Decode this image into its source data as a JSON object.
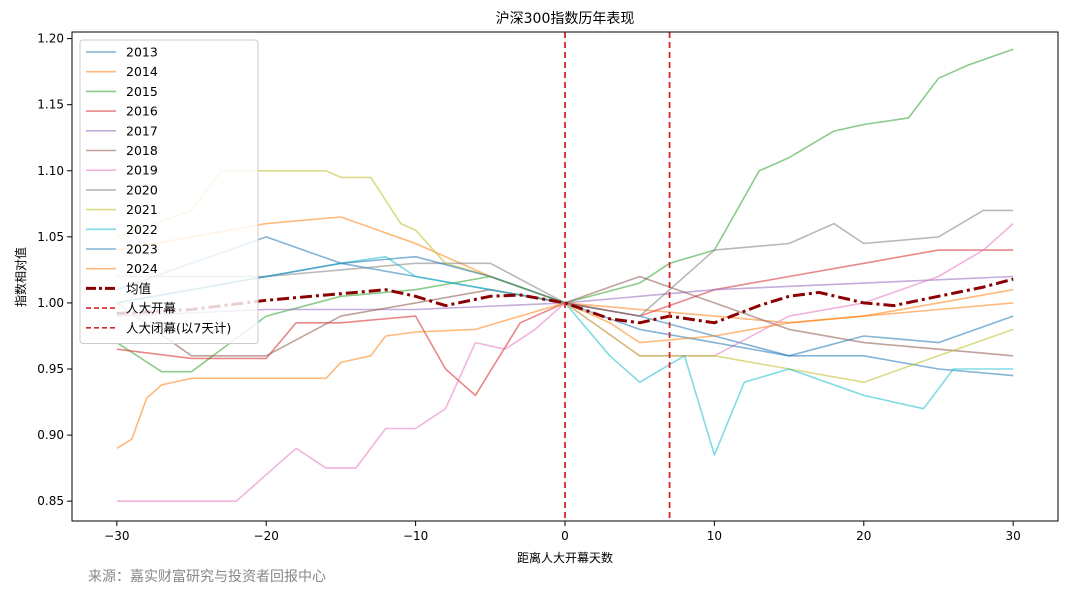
{
  "source_note": "来源：嘉实财富研究与投资者回报中心",
  "chart_data": {
    "type": "line",
    "title": "沪深300指数历年表现",
    "xlabel": "距离人大开幕天数",
    "ylabel": "指数相对值",
    "xlim": [
      -33,
      33
    ],
    "ylim": [
      0.835,
      1.205
    ],
    "xticks": [
      -30,
      -20,
      -10,
      0,
      10,
      20,
      30
    ],
    "yticks": [
      0.85,
      0.9,
      0.95,
      1.0,
      1.05,
      1.1,
      1.15,
      1.2
    ],
    "grid": false,
    "legend_position": "top-left",
    "vlines": [
      {
        "name": "人大开幕",
        "x": 0,
        "color": "#d62728",
        "dash": true
      },
      {
        "name": "人大闭幕(以7天计)",
        "x": 7,
        "color": "#d62728",
        "dash": true
      }
    ],
    "series": [
      {
        "name": "2013",
        "color": "#1f77b4",
        "x": [
          -30,
          -25,
          -20,
          -15,
          -10,
          -5,
          0,
          5,
          10,
          15,
          20,
          25,
          30
        ],
        "values": [
          1.01,
          1.03,
          1.05,
          1.03,
          1.02,
          1.01,
          1.0,
          0.99,
          0.975,
          0.96,
          0.96,
          0.95,
          0.945
        ]
      },
      {
        "name": "2014",
        "color": "#ff7f0e",
        "x": [
          -30,
          -25,
          -20,
          -15,
          -10,
          -5,
          0,
          5,
          10,
          15,
          20,
          25,
          30
        ],
        "values": [
          1.04,
          1.05,
          1.06,
          1.065,
          1.045,
          1.02,
          1.0,
          0.995,
          0.99,
          0.985,
          0.99,
          1.0,
          1.01
        ]
      },
      {
        "name": "2015",
        "color": "#2ca02c",
        "x": [
          -30,
          -27,
          -25,
          -20,
          -15,
          -10,
          -5,
          0,
          5,
          7,
          10,
          13,
          15,
          18,
          20,
          23,
          25,
          27,
          30
        ],
        "values": [
          0.97,
          0.948,
          0.948,
          0.99,
          1.005,
          1.01,
          1.02,
          1.0,
          1.015,
          1.03,
          1.04,
          1.1,
          1.11,
          1.13,
          1.135,
          1.14,
          1.17,
          1.18,
          1.192
        ]
      },
      {
        "name": "2016",
        "color": "#d62728",
        "x": [
          -30,
          -25,
          -20,
          -18,
          -15,
          -10,
          -8,
          -6,
          -3,
          0,
          5,
          10,
          15,
          20,
          25,
          30
        ],
        "values": [
          0.965,
          0.958,
          0.958,
          0.985,
          0.985,
          0.99,
          0.95,
          0.93,
          0.985,
          1.0,
          0.99,
          1.01,
          1.02,
          1.03,
          1.04,
          1.04
        ]
      },
      {
        "name": "2017",
        "color": "#9467bd",
        "x": [
          -30,
          -20,
          -10,
          0,
          10,
          20,
          30
        ],
        "values": [
          0.99,
          0.995,
          0.995,
          1.0,
          1.01,
          1.015,
          1.02
        ]
      },
      {
        "name": "2018",
        "color": "#8c564b",
        "x": [
          -30,
          -25,
          -20,
          -15,
          -10,
          -5,
          0,
          5,
          10,
          15,
          20,
          25,
          30
        ],
        "values": [
          1.0,
          0.96,
          0.96,
          0.99,
          1.0,
          1.01,
          1.0,
          1.02,
          1.0,
          0.98,
          0.97,
          0.965,
          0.96
        ]
      },
      {
        "name": "2019",
        "color": "#e377c2",
        "x": [
          -30,
          -25,
          -22,
          -20,
          -18,
          -16,
          -14,
          -12,
          -10,
          -8,
          -6,
          -4,
          -2,
          0,
          5,
          10,
          15,
          20,
          25,
          28,
          30
        ],
        "values": [
          0.85,
          0.85,
          0.85,
          0.87,
          0.89,
          0.875,
          0.875,
          0.905,
          0.905,
          0.92,
          0.97,
          0.965,
          0.98,
          1.0,
          0.96,
          0.96,
          0.99,
          1.0,
          1.02,
          1.04,
          1.06
        ]
      },
      {
        "name": "2020",
        "color": "#7f7f7f",
        "x": [
          -30,
          -20,
          -10,
          -5,
          0,
          5,
          10,
          15,
          18,
          20,
          25,
          28,
          30
        ],
        "values": [
          1.02,
          1.02,
          1.03,
          1.03,
          1.0,
          0.99,
          1.04,
          1.045,
          1.06,
          1.045,
          1.05,
          1.07,
          1.07
        ]
      },
      {
        "name": "2021",
        "color": "#bcbd22",
        "x": [
          -30,
          -25,
          -23,
          -20,
          -16,
          -15,
          -13,
          -11,
          -10,
          -8,
          -5,
          0,
          5,
          10,
          15,
          20,
          25,
          30
        ],
        "values": [
          1.05,
          1.07,
          1.1,
          1.1,
          1.1,
          1.095,
          1.095,
          1.06,
          1.055,
          1.03,
          1.02,
          1.0,
          0.96,
          0.96,
          0.95,
          0.94,
          0.96,
          0.98
        ]
      },
      {
        "name": "2022",
        "color": "#17becf",
        "x": [
          -30,
          -20,
          -15,
          -12,
          -10,
          -5,
          0,
          3,
          5,
          8,
          10,
          12,
          15,
          20,
          24,
          26,
          30
        ],
        "values": [
          1.0,
          1.02,
          1.03,
          1.035,
          1.02,
          1.01,
          1.0,
          0.96,
          0.94,
          0.96,
          0.885,
          0.94,
          0.95,
          0.93,
          0.92,
          0.95,
          0.95
        ]
      },
      {
        "name": "2023",
        "color": "#1f77b4",
        "x": [
          -30,
          -25,
          -20,
          -15,
          -10,
          -5,
          0,
          5,
          10,
          15,
          20,
          25,
          30
        ],
        "values": [
          1.0,
          1.01,
          1.02,
          1.03,
          1.035,
          1.02,
          1.0,
          0.98,
          0.97,
          0.96,
          0.975,
          0.97,
          0.99
        ]
      },
      {
        "name": "2024",
        "color": "#ff7f0e",
        "x": [
          -30,
          -29,
          -28,
          -27,
          -25,
          -20,
          -16,
          -15,
          -13,
          -12,
          -10,
          -6,
          -3,
          0,
          3,
          5,
          10,
          15,
          20,
          25,
          30
        ],
        "values": [
          0.89,
          0.897,
          0.928,
          0.938,
          0.943,
          0.943,
          0.943,
          0.955,
          0.96,
          0.975,
          0.978,
          0.98,
          0.99,
          1.0,
          0.985,
          0.97,
          0.975,
          0.985,
          0.99,
          0.995,
          1.0
        ]
      },
      {
        "name": "均值",
        "color": "#8b0000",
        "x": [
          -30,
          -25,
          -20,
          -15,
          -12,
          -10,
          -8,
          -5,
          -3,
          0,
          3,
          5,
          7,
          10,
          13,
          15,
          17,
          20,
          22,
          25,
          28,
          30
        ],
        "values": [
          0.992,
          0.995,
          1.002,
          1.007,
          1.01,
          1.005,
          0.998,
          1.005,
          1.006,
          1.0,
          0.988,
          0.985,
          0.99,
          0.985,
          0.998,
          1.005,
          1.008,
          1.0,
          0.998,
          1.005,
          1.012,
          1.018
        ]
      }
    ]
  }
}
